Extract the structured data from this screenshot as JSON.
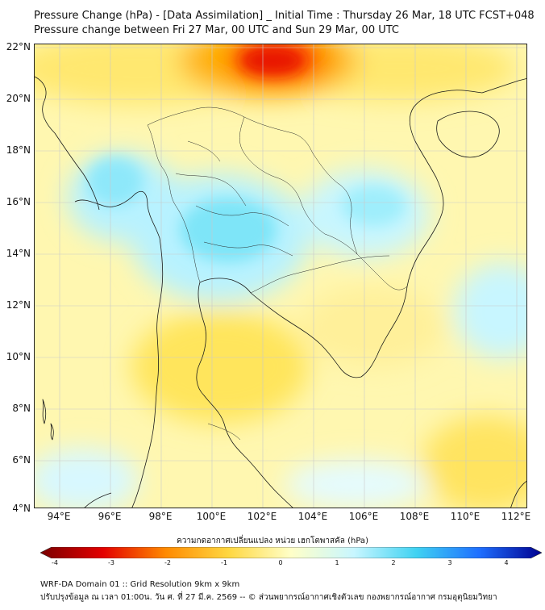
{
  "header": {
    "title": "Pressure Change (hPa) - [Data Assimilation] _ Initial Time : Thursday 26 Mar, 18 UTC FCST+048",
    "subtitle": "Pressure change between Fri 27 Mar, 00 UTC and Sun 29 Mar, 00 UTC"
  },
  "map": {
    "lat_labels": [
      "22°N",
      "20°N",
      "18°N",
      "16°N",
      "14°N",
      "12°N",
      "10°N",
      "8°N",
      "6°N",
      "4°N"
    ],
    "lon_labels": [
      "94°E",
      "96°E",
      "98°E",
      "100°E",
      "102°E",
      "104°E",
      "106°E",
      "108°E",
      "110°E",
      "112°E"
    ],
    "lat_range": [
      4,
      22
    ],
    "lon_range": [
      93,
      112.4
    ]
  },
  "colorbar": {
    "title": "ความกดอากาศเปลี่ยนแปลง หน่วย เฮกโตพาสคัล (hPa)",
    "ticks": [
      "-4",
      "-3",
      "-2",
      "-1",
      "0",
      "1",
      "2",
      "3",
      "4"
    ],
    "colors": {
      "neg_4": "#7a0000",
      "neg_3": "#e30000",
      "neg_2": "#ff8a00",
      "neg_1": "#ffd740",
      "zero": "#ffffc8",
      "pos_1": "#c8f6ff",
      "pos_2": "#3fd2f2",
      "pos_3": "#1e6fff",
      "pos_4": "#000090"
    }
  },
  "footer": {
    "line1": "WRF-DA Domain 01 :: Grid Resolution 9km x 9km",
    "line2": "ปรับปรุงข้อมูล ณ เวลา 01:00น. วัน ศ. ที่ 27 มี.ค. 2569 -- © ส่วนพยากรณ์อากาศเชิงตัวเลข กองพยากรณ์อากาศ กรมอุตุนิยมวิทยา"
  }
}
